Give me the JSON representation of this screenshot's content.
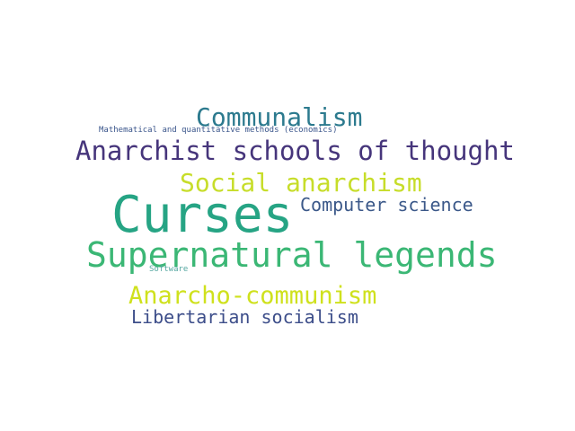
{
  "words": [
    {
      "text": "Curses",
      "color": "#26a484"
    },
    {
      "text": "Supernatural legends",
      "color": "#3bb775"
    },
    {
      "text": "Anarchist schools of thought",
      "color": "#46357b"
    },
    {
      "text": "Communalism",
      "color": "#2c7a8e"
    },
    {
      "text": "Social anarchism",
      "color": "#c7dd2a"
    },
    {
      "text": "Anarcho-communism",
      "color": "#cfe11d"
    },
    {
      "text": "Computer science",
      "color": "#3b5889"
    },
    {
      "text": "Libertarian socialism",
      "color": "#3d4e8a"
    },
    {
      "text": "Mathematical and quantitative methods (economics)",
      "color": "#3a558b"
    },
    {
      "text": "Software",
      "color": "#53a6a0"
    }
  ]
}
